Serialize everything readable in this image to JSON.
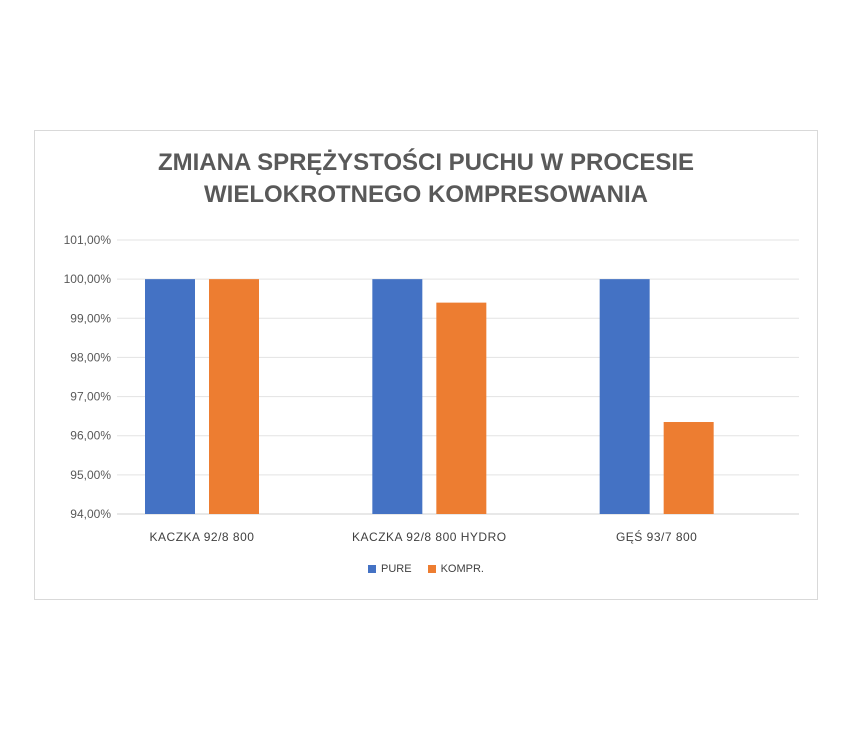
{
  "chart_data": {
    "type": "bar",
    "title": "ZMIANA SPRĘŻYSTOŚCI PUCHU W PROCESIE\nWIELOKROTNEGO KOMPRESOWANIA",
    "categories": [
      "KACZKA 92/8 800",
      "KACZKA 92/8 800 HYDRO",
      "GĘŚ 93/7 800"
    ],
    "series": [
      {
        "name": "PURE",
        "values": [
          100.0,
          100.0,
          100.0
        ],
        "color": "#4472c4"
      },
      {
        "name": "KOMPR.",
        "values": [
          100.0,
          99.4,
          96.35
        ],
        "color": "#ed7d31"
      }
    ],
    "ylim": [
      94,
      101
    ],
    "yticks": [
      "94,00%",
      "95,00%",
      "96,00%",
      "97,00%",
      "98,00%",
      "99,00%",
      "100,00%",
      "101,00%"
    ],
    "grid": true,
    "legend_position": "bottom"
  }
}
